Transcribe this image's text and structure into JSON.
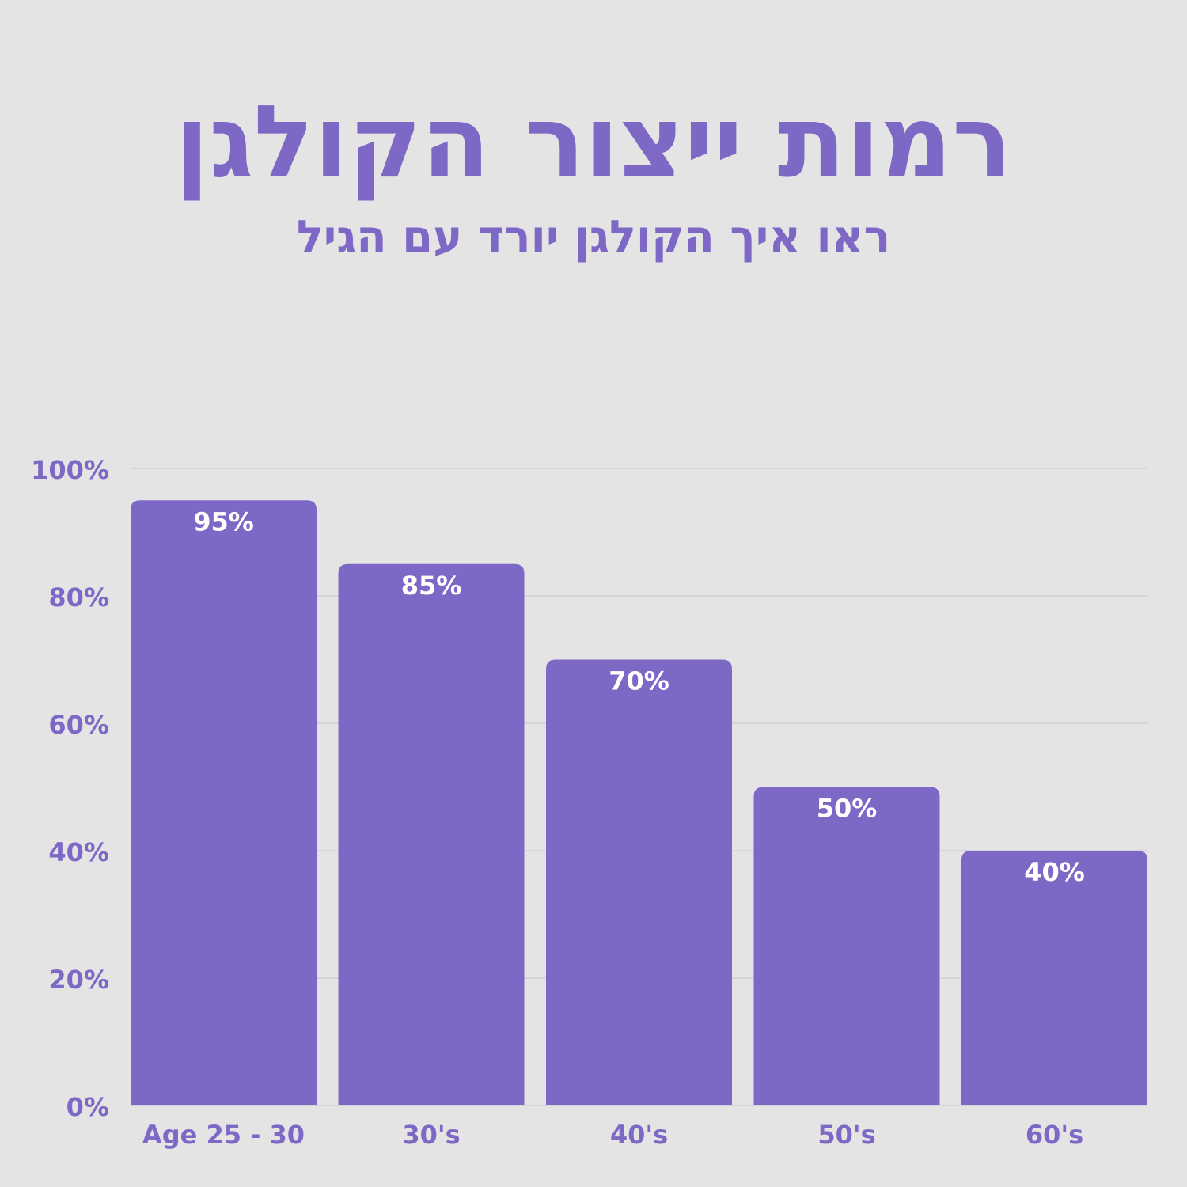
{
  "title": "רמות ייצור הקולגן",
  "subtitle": "ראו איך הקולגן יורד עם הגיל",
  "colors": {
    "background": "#e4e4e4",
    "accent": "#7e68c6",
    "bar": "#7e68c6",
    "bar_label": "#ffffff",
    "grid": "#cfcfd8"
  },
  "chart_data": {
    "type": "bar",
    "categories": [
      "Age 25 - 30",
      "30's",
      "40's",
      "50's",
      "60's"
    ],
    "values": [
      95,
      85,
      70,
      50,
      40
    ],
    "data_labels": [
      "95%",
      "85%",
      "70%",
      "50%",
      "40%"
    ],
    "ylim": [
      0,
      100
    ],
    "yticks": [
      0,
      20,
      40,
      60,
      80,
      100
    ],
    "ytick_labels": [
      "0%",
      "20%",
      "40%",
      "60%",
      "80%",
      "100%"
    ],
    "xlabel": "",
    "ylabel": "",
    "grid": true,
    "legend": "none"
  }
}
